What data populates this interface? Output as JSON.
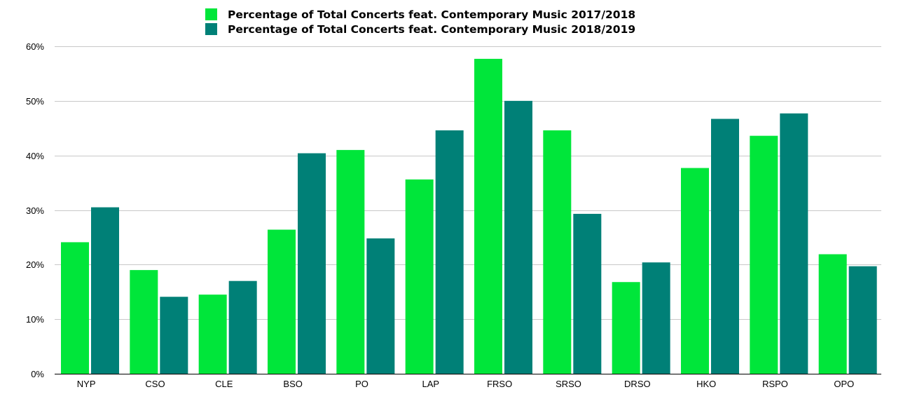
{
  "chart_data": {
    "type": "bar",
    "title": "",
    "xlabel": "",
    "ylabel": "",
    "categories": [
      "NYP",
      "CSO",
      "CLE",
      "BSO",
      "PO",
      "LAP",
      "FRSO",
      "SRSO",
      "DRSO",
      "HKO",
      "RSPO",
      "OPO"
    ],
    "series": [
      {
        "name": "Percentage of Total Concerts feat. Contemporary Music 2017/2018",
        "color": "#00E63A",
        "values": [
          24.1,
          19.0,
          14.5,
          26.4,
          41.0,
          35.6,
          57.7,
          44.6,
          16.8,
          37.7,
          43.6,
          21.9
        ]
      },
      {
        "name": "Percentage of Total Concerts feat. Contemporary Music 2018/2019",
        "color": "#008077",
        "values": [
          30.5,
          14.1,
          17.0,
          40.4,
          24.8,
          44.6,
          50.0,
          29.3,
          20.4,
          46.7,
          47.7,
          19.7
        ]
      }
    ],
    "ylim": [
      0,
      60
    ],
    "yticks": [
      0,
      10,
      20,
      30,
      40,
      50,
      60
    ],
    "ytick_labels": [
      "0%",
      "10%",
      "20%",
      "30%",
      "40%",
      "50%",
      "60%"
    ],
    "grid": true,
    "legend_position": "top"
  }
}
